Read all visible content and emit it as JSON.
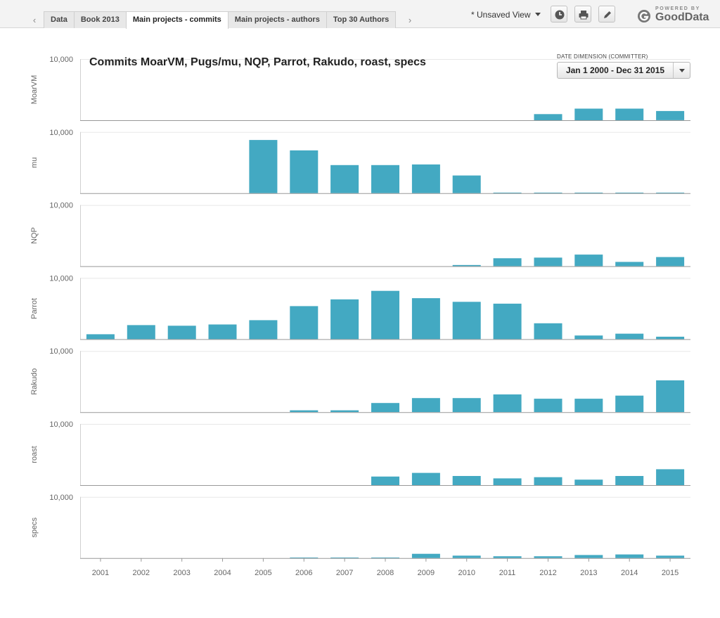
{
  "tabs": {
    "items": [
      {
        "label": "Data",
        "active": false
      },
      {
        "label": "Book 2013",
        "active": false
      },
      {
        "label": "Main projects - commits",
        "active": true
      },
      {
        "label": "Main projects - authors",
        "active": false
      },
      {
        "label": "Top 30 Authors",
        "active": false
      }
    ]
  },
  "toolbar": {
    "view_label": "* Unsaved View",
    "icons": [
      "clock-icon",
      "print-icon",
      "pencil-icon"
    ]
  },
  "branding": {
    "powered_by": "POWERED BY",
    "name": "GoodData"
  },
  "filter": {
    "label": "DATE DIMENSION (COMMITTER)",
    "value": "Jan 1 2000 - Dec 31 2015"
  },
  "colors": {
    "bar": "#43a9c2",
    "grid": "#e8e8e8",
    "axis": "#999999"
  },
  "chart_data": {
    "type": "bar",
    "title": "Commits MoarVM, Pugs/mu, NQP, Parrot, Rakudo, roast, specs",
    "categories": [
      "2001",
      "2002",
      "2003",
      "2004",
      "2005",
      "2006",
      "2007",
      "2008",
      "2009",
      "2010",
      "2011",
      "2012",
      "2013",
      "2014",
      "2015"
    ],
    "y_tick_label": "10,000",
    "ylim": [
      0,
      10000
    ],
    "grid": true,
    "series": [
      {
        "name": "MoarVM",
        "values": [
          0,
          0,
          0,
          0,
          0,
          0,
          0,
          0,
          0,
          0,
          0,
          1000,
          1900,
          1900,
          1500
        ]
      },
      {
        "name": "mu",
        "values": [
          0,
          0,
          0,
          0,
          8700,
          7000,
          4600,
          4600,
          4700,
          2900,
          100,
          100,
          100,
          100,
          100
        ]
      },
      {
        "name": "NQP",
        "values": [
          0,
          0,
          0,
          0,
          0,
          0,
          0,
          0,
          0,
          200,
          1300,
          1400,
          1900,
          700,
          1500
        ]
      },
      {
        "name": "Parrot",
        "values": [
          800,
          2300,
          2200,
          2400,
          3100,
          5400,
          6500,
          7900,
          6700,
          6100,
          5800,
          2600,
          600,
          900,
          400
        ]
      },
      {
        "name": "Rakudo",
        "values": [
          0,
          0,
          0,
          0,
          0,
          300,
          300,
          1500,
          2300,
          2300,
          2900,
          2200,
          2200,
          2700,
          5200
        ]
      },
      {
        "name": "roast",
        "values": [
          0,
          0,
          0,
          0,
          0,
          0,
          0,
          1400,
          2000,
          1500,
          1100,
          1300,
          900,
          1500,
          2600
        ]
      },
      {
        "name": "specs",
        "values": [
          0,
          0,
          0,
          0,
          0,
          100,
          100,
          100,
          700,
          400,
          300,
          300,
          500,
          600,
          400
        ]
      }
    ]
  }
}
